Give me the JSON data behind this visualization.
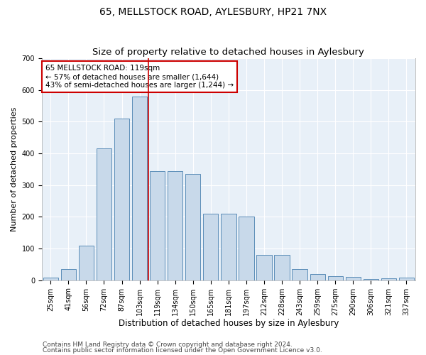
{
  "title": "65, MELLSTOCK ROAD, AYLESBURY, HP21 7NX",
  "subtitle": "Size of property relative to detached houses in Aylesbury",
  "xlabel": "Distribution of detached houses by size in Aylesbury",
  "ylabel": "Number of detached properties",
  "categories": [
    "25sqm",
    "41sqm",
    "56sqm",
    "72sqm",
    "87sqm",
    "103sqm",
    "119sqm",
    "134sqm",
    "150sqm",
    "165sqm",
    "181sqm",
    "197sqm",
    "212sqm",
    "228sqm",
    "243sqm",
    "259sqm",
    "275sqm",
    "290sqm",
    "306sqm",
    "321sqm",
    "337sqm"
  ],
  "values": [
    8,
    35,
    110,
    415,
    510,
    580,
    345,
    345,
    335,
    210,
    210,
    200,
    80,
    80,
    35,
    20,
    12,
    10,
    3,
    5,
    8
  ],
  "bar_color": "#c8d9ea",
  "bar_edge_color": "#5b8db8",
  "highlight_index": 6,
  "highlight_line_color": "#cc0000",
  "ylim": [
    0,
    700
  ],
  "yticks": [
    0,
    100,
    200,
    300,
    400,
    500,
    600,
    700
  ],
  "annotation_text": "65 MELLSTOCK ROAD: 119sqm\n← 57% of detached houses are smaller (1,644)\n43% of semi-detached houses are larger (1,244) →",
  "annotation_box_color": "#ffffff",
  "annotation_box_edge": "#cc0000",
  "footer1": "Contains HM Land Registry data © Crown copyright and database right 2024.",
  "footer2": "Contains public sector information licensed under the Open Government Licence v3.0.",
  "background_color": "#ffffff",
  "plot_bg_color": "#e8f0f8",
  "grid_color": "#ffffff",
  "title_fontsize": 10,
  "xlabel_fontsize": 8.5,
  "ylabel_fontsize": 8,
  "tick_fontsize": 7,
  "annotation_fontsize": 7.5,
  "footer_fontsize": 6.5
}
